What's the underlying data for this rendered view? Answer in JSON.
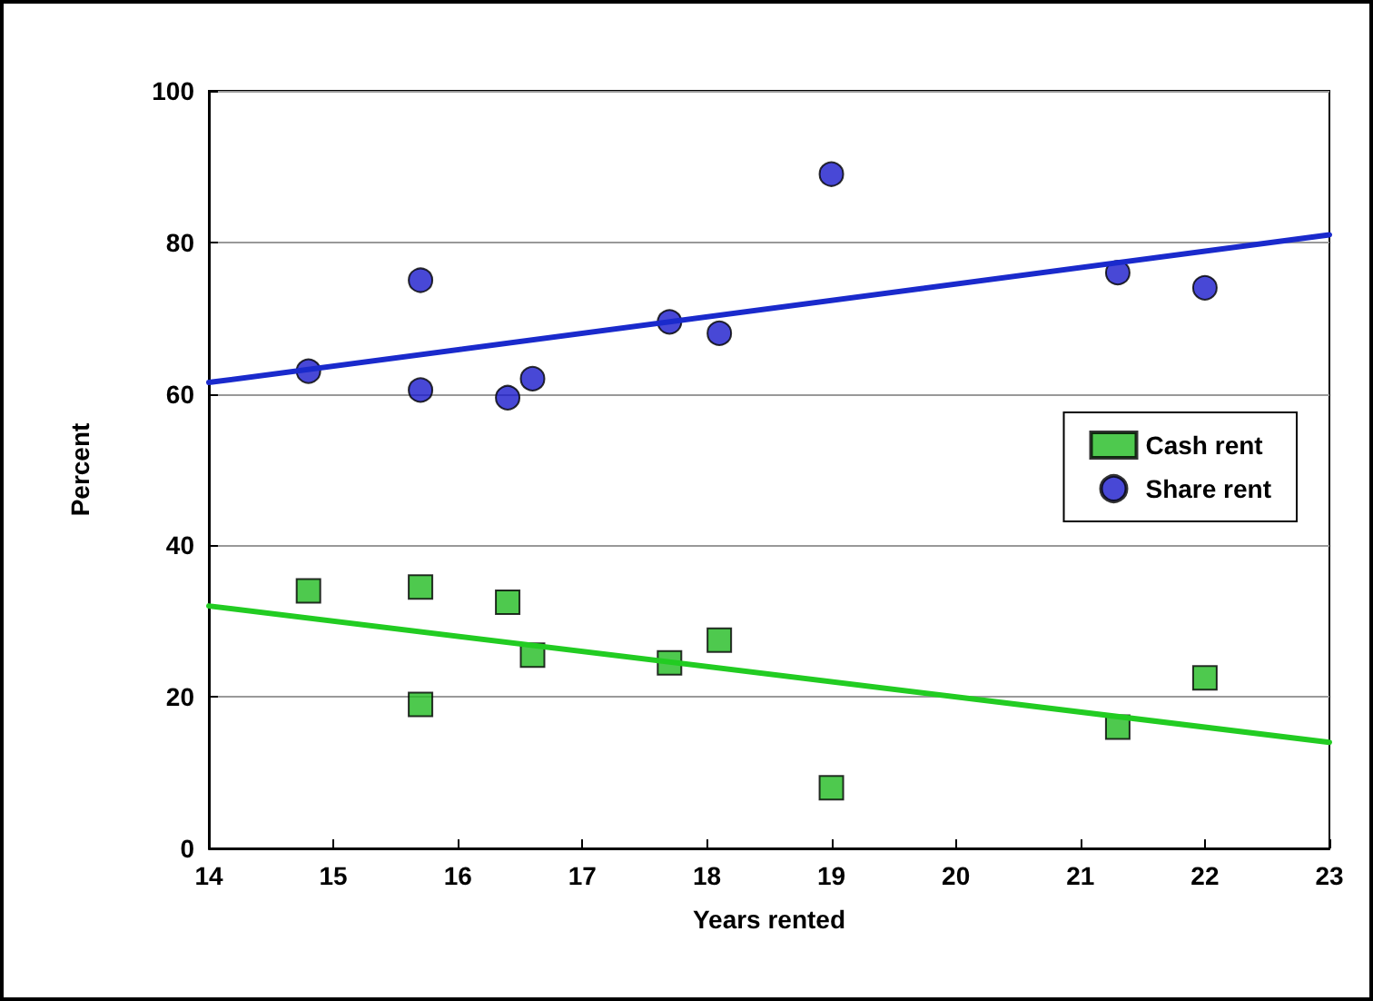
{
  "chart_data": {
    "type": "scatter",
    "xlabel": "Years rented",
    "ylabel": "Percent",
    "xlim": [
      14,
      23
    ],
    "xticks": [
      14,
      15,
      16,
      17,
      18,
      19,
      20,
      21,
      22,
      23
    ],
    "ylim": [
      0,
      100
    ],
    "yticks": [
      0,
      20,
      40,
      60,
      80,
      100
    ],
    "grid": "y",
    "legend": "right",
    "series": [
      {
        "name": "Cash rent",
        "color": "#22bb22",
        "marker": "square",
        "x": [
          14.8,
          15.7,
          15.7,
          16.4,
          16.6,
          17.7,
          18.1,
          19,
          21.3,
          22
        ],
        "values": [
          34,
          34.5,
          19,
          32.5,
          25.5,
          24.5,
          27.5,
          8,
          16,
          22.5
        ]
      },
      {
        "name": "Share rent",
        "color": "#1a1acc",
        "marker": "circle",
        "x": [
          14.8,
          15.7,
          15.7,
          16.4,
          16.6,
          17.7,
          18.1,
          19,
          21.3,
          22
        ],
        "values": [
          63,
          75,
          60.5,
          59.5,
          62,
          69.5,
          68,
          89,
          76,
          74
        ]
      },
      {
        "type": "line",
        "color": "#22cc22",
        "marker": "none",
        "x": [
          14,
          23
        ],
        "values": [
          32,
          14
        ]
      },
      {
        "type": "line",
        "color": "#1a2acc",
        "marker": "none",
        "x": [
          14,
          23
        ],
        "values": [
          61.5,
          81
        ]
      }
    ]
  }
}
